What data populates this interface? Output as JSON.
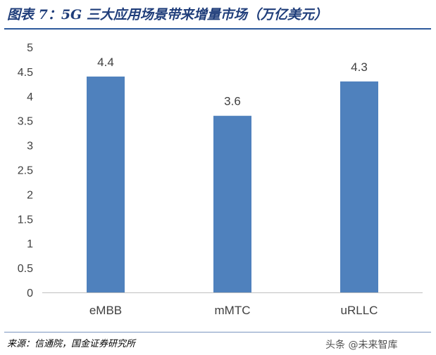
{
  "figure": {
    "title": "图表 7：5G 三大应用场景带来增量市场（万亿美元）",
    "source": "来源：信通院，国金证券研究所",
    "watermark": "头条 @未来智库"
  },
  "colors": {
    "bar": "#4f81bd",
    "title": "#1f3d7a",
    "rule": "#2e5a9c",
    "axis_text": "#404040",
    "axis_line": "#bfbfbf"
  },
  "chart_data": {
    "type": "bar",
    "categories": [
      "eMBB",
      "mMTC",
      "uRLLC"
    ],
    "values": [
      4.4,
      3.6,
      4.3
    ],
    "data_labels": [
      "4.4",
      "3.6",
      "4.3"
    ],
    "yticks": [
      "0",
      "0.5",
      "1",
      "1.5",
      "2",
      "2.5",
      "3",
      "3.5",
      "4",
      "4.5",
      "5"
    ],
    "ylim": [
      0,
      5
    ],
    "title": "",
    "xlabel": "",
    "ylabel": "",
    "grid": false,
    "legend": "none"
  }
}
